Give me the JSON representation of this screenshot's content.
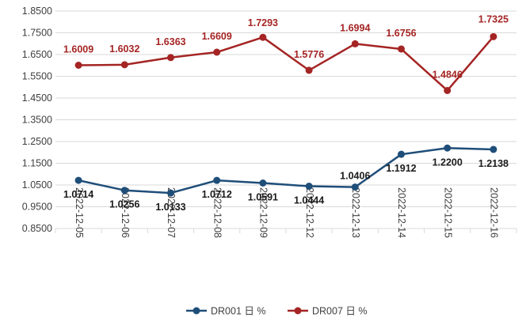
{
  "chart_data": {
    "type": "line",
    "categories": [
      "2022-12-05",
      "2022-12-06",
      "2022-12-07",
      "2022-12-08",
      "2022-12-09",
      "2022-12-12",
      "2022-12-13",
      "2022-12-14",
      "2022-12-15",
      "2022-12-16"
    ],
    "series": [
      {
        "name": "DR001 日 %",
        "color": "#1f4e79",
        "values": [
          1.0714,
          1.0256,
          1.0133,
          1.0712,
          1.0591,
          1.0444,
          1.0406,
          1.1912,
          1.22,
          1.2138
        ],
        "labels": [
          "1.0714",
          "1.0256",
          "1.0133",
          "1.0712",
          "1.0591",
          "1.0444",
          "1.0406",
          "1.1912",
          "1.2200",
          "1.2138"
        ],
        "label_color": "#1a1a1a"
      },
      {
        "name": "DR007 日 %",
        "color": "#a42524",
        "values": [
          1.6009,
          1.6032,
          1.6363,
          1.6609,
          1.7293,
          1.5776,
          1.6994,
          1.6756,
          1.4846,
          1.7325
        ],
        "labels": [
          "1.6009",
          "1.6032",
          "1.6363",
          "1.6609",
          "1.7293",
          "1.5776",
          "1.6994",
          "1.6756",
          "1.4846",
          "1.7325"
        ],
        "label_color": "#a42524"
      }
    ],
    "ylim": [
      0.85,
      1.85
    ],
    "yticks": [
      "0.8500",
      "0.9500",
      "1.0500",
      "1.1500",
      "1.2500",
      "1.3500",
      "1.4500",
      "1.5500",
      "1.6500",
      "1.7500",
      "1.8500"
    ],
    "ytick_values": [
      0.85,
      0.95,
      1.05,
      1.15,
      1.25,
      1.35,
      1.45,
      1.55,
      1.65,
      1.75,
      1.85
    ],
    "grid": true,
    "legend_position": "bottom"
  }
}
